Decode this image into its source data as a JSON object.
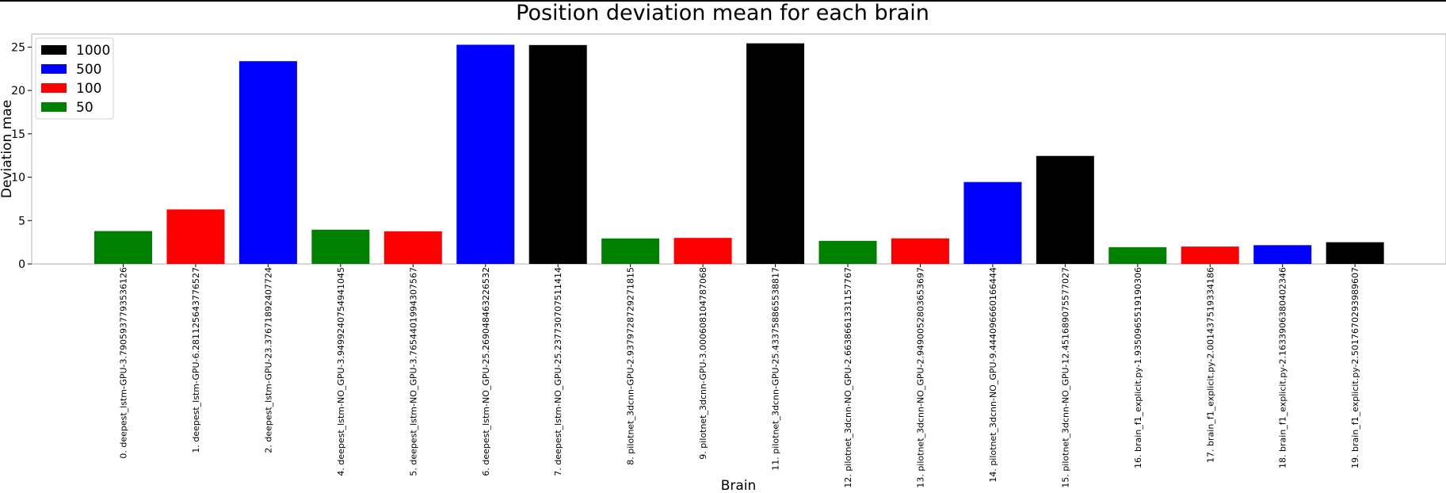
{
  "chart_data": {
    "type": "bar",
    "title": "Position deviation mean for each brain",
    "xlabel": "Brain",
    "ylabel": "Deviation mae",
    "ylim": [
      0,
      26.5
    ],
    "yticks": [
      0,
      5,
      10,
      15,
      20,
      25
    ],
    "grid": false,
    "legend_position": "top-left",
    "legend": [
      {
        "label": "1000",
        "color": "#000000"
      },
      {
        "label": "500",
        "color": "#0000ff"
      },
      {
        "label": "100",
        "color": "#ff0000"
      },
      {
        "label": "50",
        "color": "#008000"
      }
    ],
    "categories": [
      "0. deepest_lstm-GPU-3.790593779353612​6",
      "1. deepest_lstm-GPU-6.281125643776527",
      "2. deepest_lstm-GPU-23.37671892407724",
      "4. deepest_lstm-NO_GPU-3.949924075494104​5",
      "5. deepest_lstm-NO_GPU-3.765440199430756​7",
      "6. deepest_lstm-NO_GPU-25.26904846322653​2",
      "7. deepest_lstm-NO_GPU-25.23773070751141​4",
      "8. pilotnet_3dcnn-GPU-2.937972872927181​5",
      "9. pilotnet_3dcnn-GPU-3.000608104787068",
      "11. pilotnet_3dcnn-GPU-25.43375886553881​7",
      "12. pilotnet_3dcnn-NO_GPU-2.663866133115776​7",
      "13. pilotnet_3dcnn-NO_GPU-2.949005280365369​7",
      "14. pilotnet_3dcnn-NO_GPU-9.444096660166444",
      "15. pilotnet_3dcnn-NO_GPU-12.45168907557702​7",
      "16. brain_f1_explicit.py-1.935096551919030​6",
      "17. brain_f1_explicit.py-2.001437519334186",
      "18. brain_f1_explicit.py-2.163390638040234​6",
      "19. brain_f1_explicit.py-2.501767029398960​7"
    ],
    "values": [
      3.7906,
      6.2811,
      23.3767,
      3.9499,
      3.7654,
      25.269,
      25.2377,
      2.938,
      3.0006,
      25.4338,
      2.6639,
      2.949,
      9.4441,
      12.4517,
      1.9351,
      2.0014,
      2.1634,
      2.5018
    ],
    "colors": [
      "#008000",
      "#ff0000",
      "#0000ff",
      "#008000",
      "#ff0000",
      "#0000ff",
      "#000000",
      "#008000",
      "#ff0000",
      "#000000",
      "#008000",
      "#ff0000",
      "#0000ff",
      "#000000",
      "#008000",
      "#ff0000",
      "#0000ff",
      "#000000"
    ]
  }
}
